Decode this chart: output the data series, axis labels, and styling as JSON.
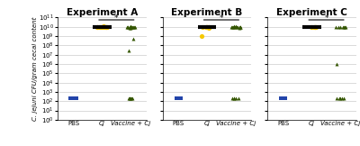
{
  "experiments": [
    "Experiment A",
    "Experiment B",
    "Experiment C"
  ],
  "groups": [
    "PBS",
    "Cj",
    "Vaccine + Cj"
  ],
  "ylabel": "C. jejuni CFU/gram cecal content",
  "background_color": "#ffffff",
  "grid_color": "#cccccc",
  "title_fontsize": 7.5,
  "label_fontsize": 5.0,
  "tick_fontsize": 5.0,
  "median_linewidth": 3.0,
  "exp_A": {
    "PBS_y": [
      200,
      200,
      200,
      200,
      200,
      200,
      200,
      200,
      200,
      200
    ],
    "Cj_y": [
      11000000000.0,
      10500000000.0,
      10000000000.0,
      9800000000.0,
      9500000000.0,
      10000000000.0,
      9200000000.0,
      10000000000.0,
      10000000000.0,
      9000000000.0,
      8800000000.0,
      9500000000.0
    ],
    "Cj_median": 10000000000.0,
    "VCj_y": [
      10000000000.0,
      9500000000.0,
      9200000000.0,
      9800000000.0,
      10000000000.0,
      9000000000.0,
      8500000000.0,
      11000000000.0,
      9500000000.0,
      9000000000.0,
      8000000000.0,
      7500000000.0,
      10000000000.0,
      9800000000.0,
      500000000.0,
      30000000.0,
      200,
      200,
      200,
      200,
      200,
      200
    ]
  },
  "exp_B": {
    "PBS_y": [
      200,
      200,
      200,
      200,
      200,
      200,
      200
    ],
    "Cj_y": [
      10000000000.0,
      9500000000.0,
      9000000000.0,
      8500000000.0,
      1000000000.0,
      9000000000.0,
      8000000000.0,
      9500000000.0,
      9200000000.0
    ],
    "Cj_median": 9000000000.0,
    "VCj_y": [
      10000000000.0,
      9500000000.0,
      10000000000.0,
      11000000000.0,
      9000000000.0,
      8500000000.0,
      10000000000.0,
      9500000000.0,
      8000000000.0,
      11000000000.0,
      9200000000.0,
      8500000000.0,
      10000000000.0,
      9000000000.0,
      200,
      200,
      200,
      200,
      200
    ]
  },
  "exp_C": {
    "PBS_y": [
      200,
      200,
      200,
      200,
      200,
      200,
      200
    ],
    "Cj_y": [
      10000000000.0,
      10500000000.0,
      9800000000.0,
      10000000000.0,
      9500000000.0
    ],
    "Cj_median": 10000000000.0,
    "VCj_y": [
      10500000000.0,
      9500000000.0,
      9000000000.0,
      8500000000.0,
      10000000000.0,
      10000000000.0,
      9000000000.0,
      1000000.0,
      200,
      200,
      200,
      200,
      200
    ]
  },
  "PBS_color": "#2244aa",
  "Cj_color": "#f5c800",
  "VCj_color": "#335500"
}
